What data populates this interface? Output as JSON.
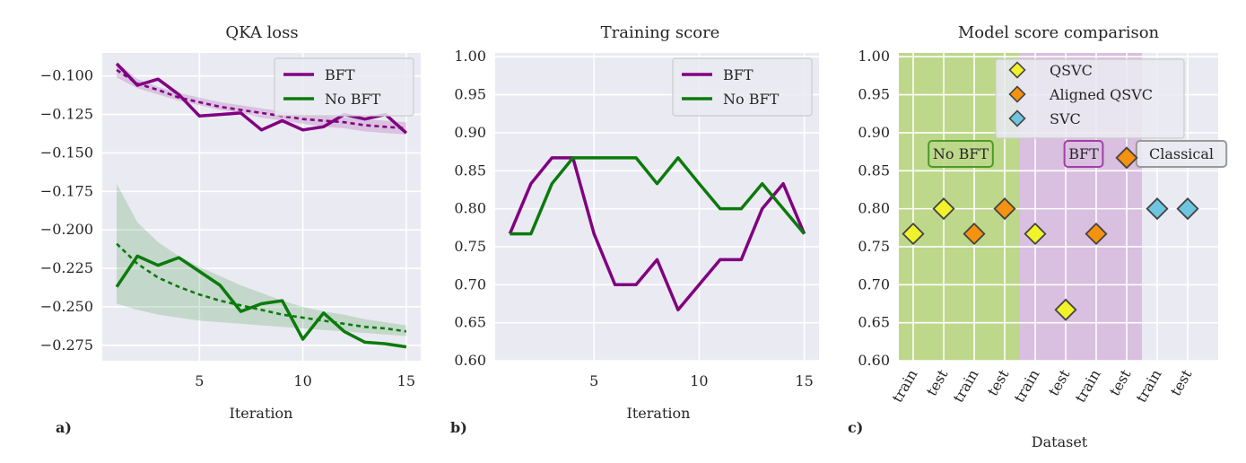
{
  "chart_data": [
    {
      "type": "line",
      "title": "QKA loss",
      "xlabel": "Iteration",
      "ylabel": "",
      "panel_label": "a)",
      "xlim": [
        0.3,
        15.7
      ],
      "ylim": [
        -0.285,
        -0.085
      ],
      "xticks": [
        5,
        10,
        15
      ],
      "yticks": [
        -0.1,
        -0.125,
        -0.15,
        -0.175,
        -0.2,
        -0.225,
        -0.25,
        -0.275
      ],
      "ytick_labels": [
        "−0.100",
        "−0.125",
        "−0.150",
        "−0.175",
        "−0.200",
        "−0.225",
        "−0.250",
        "−0.275"
      ],
      "grid": true,
      "legend_position": "top-right",
      "series": [
        {
          "name": "BFT",
          "color": "#800080",
          "x": [
            1,
            2,
            3,
            4,
            5,
            6,
            7,
            8,
            9,
            10,
            11,
            12,
            13,
            14,
            15
          ],
          "values": [
            -0.092,
            -0.106,
            -0.102,
            -0.112,
            -0.126,
            -0.125,
            -0.124,
            -0.135,
            -0.129,
            -0.135,
            -0.133,
            -0.125,
            -0.128,
            -0.125,
            -0.137
          ],
          "fit": [
            -0.096,
            -0.105,
            -0.109,
            -0.114,
            -0.117,
            -0.12,
            -0.122,
            -0.124,
            -0.126,
            -0.128,
            -0.129,
            -0.13,
            -0.132,
            -0.133,
            -0.134
          ],
          "band_lower": [
            -0.101,
            -0.108,
            -0.112,
            -0.116,
            -0.119,
            -0.122,
            -0.124,
            -0.127,
            -0.129,
            -0.131,
            -0.133,
            -0.134,
            -0.136,
            -0.137,
            -0.138
          ],
          "band_upper": [
            -0.091,
            -0.102,
            -0.107,
            -0.111,
            -0.114,
            -0.117,
            -0.119,
            -0.121,
            -0.123,
            -0.125,
            -0.126,
            -0.127,
            -0.128,
            -0.129,
            -0.13
          ]
        },
        {
          "name": "No BFT",
          "color": "#0b7a0b",
          "x": [
            1,
            2,
            3,
            4,
            5,
            6,
            7,
            8,
            9,
            10,
            11,
            12,
            13,
            14,
            15
          ],
          "values": [
            -0.237,
            -0.217,
            -0.223,
            -0.218,
            -0.227,
            -0.236,
            -0.253,
            -0.248,
            -0.246,
            -0.271,
            -0.254,
            -0.266,
            -0.273,
            -0.274,
            -0.276
          ],
          "fit": [
            -0.209,
            -0.222,
            -0.231,
            -0.237,
            -0.242,
            -0.246,
            -0.249,
            -0.252,
            -0.255,
            -0.257,
            -0.259,
            -0.261,
            -0.263,
            -0.264,
            -0.266
          ],
          "band_lower": [
            -0.248,
            -0.252,
            -0.255,
            -0.257,
            -0.259,
            -0.26,
            -0.261,
            -0.262,
            -0.263,
            -0.264,
            -0.265,
            -0.266,
            -0.267,
            -0.268,
            -0.269
          ],
          "band_upper": [
            -0.17,
            -0.195,
            -0.208,
            -0.217,
            -0.224,
            -0.23,
            -0.236,
            -0.241,
            -0.246,
            -0.25,
            -0.253,
            -0.255,
            -0.258,
            -0.26,
            -0.262
          ]
        }
      ]
    },
    {
      "type": "line",
      "title": "Training score",
      "xlabel": "Iteration",
      "ylabel": "",
      "panel_label": "b)",
      "xlim": [
        0.3,
        15.7
      ],
      "ylim": [
        0.6,
        1.005
      ],
      "xticks": [
        5,
        10,
        15
      ],
      "yticks": [
        0.6,
        0.65,
        0.7,
        0.75,
        0.8,
        0.85,
        0.9,
        0.95,
        1.0
      ],
      "ytick_labels": [
        "0.60",
        "0.65",
        "0.70",
        "0.75",
        "0.80",
        "0.85",
        "0.90",
        "0.95",
        "1.00"
      ],
      "grid": true,
      "legend_position": "top-right",
      "series": [
        {
          "name": "BFT",
          "color": "#800080",
          "x": [
            1,
            2,
            3,
            4,
            5,
            6,
            7,
            8,
            9,
            10,
            11,
            12,
            13,
            14,
            15
          ],
          "values": [
            0.767,
            0.833,
            0.867,
            0.867,
            0.767,
            0.7,
            0.7,
            0.733,
            0.667,
            0.7,
            0.733,
            0.733,
            0.8,
            0.833,
            0.767
          ]
        },
        {
          "name": "No BFT",
          "color": "#0b7a0b",
          "x": [
            1,
            2,
            3,
            4,
            5,
            6,
            7,
            8,
            9,
            10,
            11,
            12,
            13,
            14,
            15
          ],
          "values": [
            0.767,
            0.767,
            0.833,
            0.867,
            0.867,
            0.867,
            0.867,
            0.833,
            0.867,
            0.833,
            0.8,
            0.8,
            0.833,
            0.8,
            0.767
          ]
        }
      ]
    },
    {
      "type": "scatter",
      "title": "Model score comparison",
      "xlabel": "Dataset",
      "ylabel": "",
      "panel_label": "c)",
      "ylim": [
        0.6,
        1.005
      ],
      "yticks": [
        0.6,
        0.65,
        0.7,
        0.75,
        0.8,
        0.85,
        0.9,
        0.95,
        1.0
      ],
      "ytick_labels": [
        "0.60",
        "0.65",
        "0.70",
        "0.75",
        "0.80",
        "0.85",
        "0.90",
        "0.95",
        "1.00"
      ],
      "categories": [
        "train",
        "test",
        "train",
        "test",
        "train",
        "test",
        "train",
        "test",
        "train",
        "test"
      ],
      "grid": true,
      "legend_position": "top-center",
      "regions": [
        {
          "label": "No BFT",
          "start": 0,
          "end": 3,
          "color": "#bdd88a",
          "text_color": "#4c9a2a"
        },
        {
          "label": "BFT",
          "start": 4,
          "end": 7,
          "color": "#d9bfe0",
          "text_color": "#a040a8"
        },
        {
          "label": "Classical",
          "start": 8,
          "end": 9,
          "color": "#eaeaf2",
          "text_color": "#999999"
        }
      ],
      "series": [
        {
          "name": "QSVC",
          "color": "#f2f22a",
          "points": [
            {
              "i": 0,
              "y": 0.767
            },
            {
              "i": 1,
              "y": 0.8
            },
            {
              "i": 4,
              "y": 0.767
            },
            {
              "i": 5,
              "y": 0.667
            }
          ]
        },
        {
          "name": "Aligned QSVC",
          "color": "#f5920f",
          "points": [
            {
              "i": 2,
              "y": 0.767
            },
            {
              "i": 3,
              "y": 0.8
            },
            {
              "i": 6,
              "y": 0.767
            },
            {
              "i": 7,
              "y": 0.867
            }
          ]
        },
        {
          "name": "SVC",
          "color": "#6ec5e0",
          "points": [
            {
              "i": 8,
              "y": 0.8
            },
            {
              "i": 9,
              "y": 0.8
            }
          ]
        }
      ]
    }
  ]
}
